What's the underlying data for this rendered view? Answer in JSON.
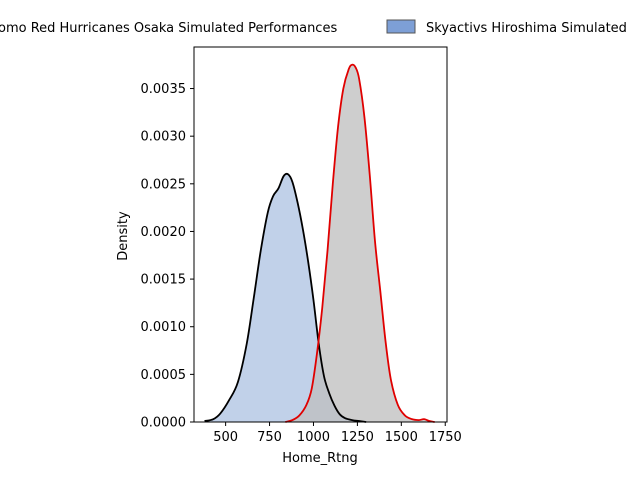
{
  "chart_data": {
    "type": "area",
    "xlabel": "Home_Rtng",
    "ylabel": "Density",
    "xlim": [
      320,
      1760
    ],
    "ylim": [
      0,
      0.003936
    ],
    "x_ticks": [
      500,
      750,
      1000,
      1250,
      1500,
      1750
    ],
    "x_tick_labels": [
      "500",
      "750",
      "1000",
      "1250",
      "1500",
      "1750"
    ],
    "y_ticks": [
      0,
      0.0005,
      0.001,
      0.0015,
      0.002,
      0.0025,
      0.003,
      0.0035
    ],
    "y_tick_labels": [
      "0.0000",
      "0.0005",
      "0.0010",
      "0.0015",
      "0.0020",
      "0.0025",
      "0.0030",
      "0.0035"
    ],
    "grid": false,
    "legend_position": "top",
    "series": [
      {
        "name": "Kubota Spears Osaka Osomo Red Hurricanes Osaka Simulated Performances",
        "legend_label": "omo Red Hurricanes Osaka Simulated Performances",
        "fill_color": "#C1D1E9",
        "line_color": "#000000",
        "x": [
          380,
          430,
          470,
          520,
          570,
          620,
          660,
          700,
          740,
          770,
          800,
          830,
          855,
          880,
          910,
          940,
          970,
          1000,
          1030,
          1060,
          1090,
          1120,
          1150,
          1180,
          1220,
          1260,
          1300
        ],
        "y": [
          1e-05,
          3e-05,
          9e-05,
          0.00023,
          0.00042,
          0.00082,
          0.0013,
          0.0018,
          0.0022,
          0.00237,
          0.00245,
          0.00258,
          0.0026,
          0.00252,
          0.0023,
          0.00202,
          0.00168,
          0.00128,
          0.00082,
          0.00048,
          0.0003,
          0.00017,
          8e-05,
          4e-05,
          2e-05,
          1e-05,
          0.0
        ]
      },
      {
        "name": "Skyactivs Hiroshima Simulated",
        "legend_label": "Skyactivs Hiroshima Simulated",
        "fill_color": "#BEBEBE",
        "line_color": "#E00000",
        "x": [
          840,
          880,
          920,
          960,
          990,
          1020,
          1050,
          1080,
          1110,
          1140,
          1170,
          1200,
          1220,
          1240,
          1260,
          1290,
          1320,
          1350,
          1380,
          1410,
          1440,
          1480,
          1520,
          1560,
          1600,
          1630,
          1660,
          1690
        ],
        "y": [
          0.0,
          2e-05,
          7e-05,
          0.00018,
          0.00035,
          0.00072,
          0.0012,
          0.0018,
          0.0025,
          0.0031,
          0.0035,
          0.0037,
          0.00375,
          0.00372,
          0.0036,
          0.0032,
          0.0026,
          0.0019,
          0.00138,
          0.00085,
          0.00045,
          0.00018,
          7e-05,
          3e-05,
          2e-05,
          3e-05,
          1e-05,
          0.0
        ]
      }
    ]
  }
}
